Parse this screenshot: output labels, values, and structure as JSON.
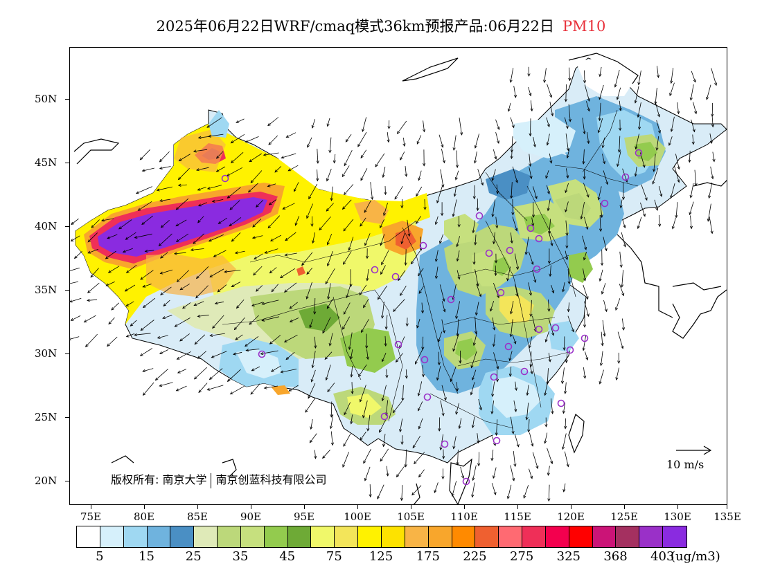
{
  "title": {
    "main": "2025年06月22日WRF/cmaq模式36km预报产品:06月22日",
    "pollutant": "PM10",
    "pollutant_color": "#e8303a"
  },
  "axes": {
    "lat_labels": [
      "50N",
      "45N",
      "40N",
      "35N",
      "30N",
      "25N",
      "20N"
    ],
    "lon_labels": [
      "75E",
      "80E",
      "85E",
      "90E",
      "95E",
      "100E",
      "105E",
      "110E",
      "115E",
      "120E",
      "125E",
      "130E",
      "135E"
    ]
  },
  "copyright": {
    "left": "版权所有: 南京大学",
    "right": "南京创蓝科技有限公司"
  },
  "wind_reference": "10 m/s",
  "colorbar": {
    "colors": [
      "#ffffff",
      "#d6f0fb",
      "#9fd8f2",
      "#6fb3de",
      "#4a8fc4",
      "#dfeab8",
      "#bcd87a",
      "#c6e07e",
      "#93cb4e",
      "#6eaa36",
      "#f0f86a",
      "#f3e55a",
      "#fff200",
      "#fde200",
      "#f8b446",
      "#f8a62c",
      "#ff8a00",
      "#ef6030",
      "#ff6a72",
      "#ef2f58",
      "#f3004e",
      "#ff0000",
      "#cb1477",
      "#a43060",
      "#9a30c8",
      "#8a2be0"
    ],
    "labels": [
      "5",
      "15",
      "25",
      "35",
      "45",
      "75",
      "125",
      "175",
      "225",
      "275",
      "325",
      "368",
      "403"
    ],
    "unit": "(ug/m3)"
  }
}
